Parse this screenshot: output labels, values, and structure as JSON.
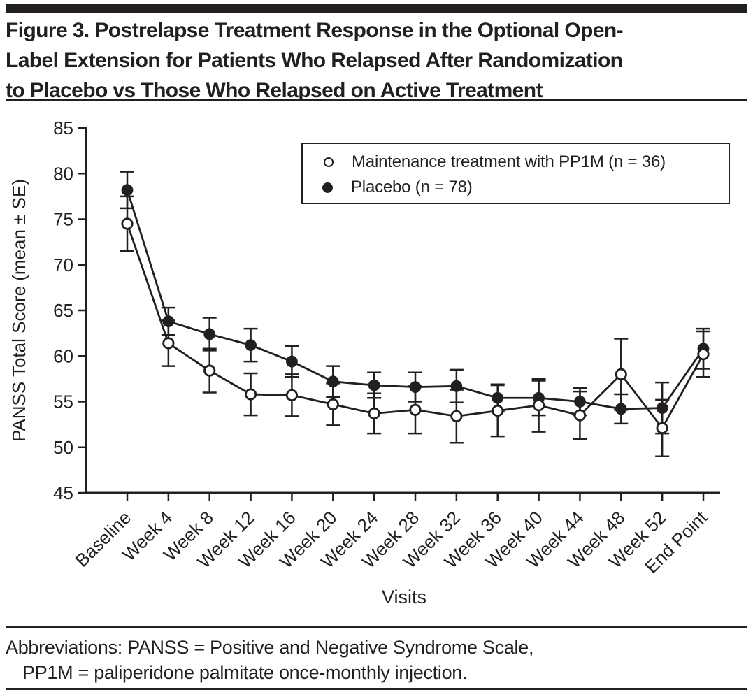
{
  "figure": {
    "title_lines": [
      "Figure 3. Postrelapse Treatment Response in the Optional Open-",
      "Label Extension for Patients Who Relapsed After Randomization",
      "to Placebo vs Those Who Relapsed on Active Treatment"
    ]
  },
  "chart_data": {
    "type": "line",
    "title": "Figure 3. Postrelapse Treatment Response in the Optional Open-Label Extension for Patients Who Relapsed After Randomization to Placebo vs Those Who Relapsed on Active Treatment",
    "xlabel": "Visits",
    "ylabel": "PANSS Total Score (mean ± SE)",
    "ylim": [
      45,
      85
    ],
    "ytick_interval": 5,
    "yticks": [
      45,
      50,
      55,
      60,
      65,
      70,
      75,
      80,
      85
    ],
    "grid": false,
    "legend_position": "top-right",
    "error_bars": "± SE",
    "categories": [
      "Baseline",
      "Week 4",
      "Week 8",
      "Week 12",
      "Week 16",
      "Week 20",
      "Week 24",
      "Week 28",
      "Week 32",
      "Week 36",
      "Week 40",
      "Week 44",
      "Week 48",
      "Week 52",
      "End Point"
    ],
    "series": [
      {
        "name": "Maintenance treatment with PP1M (n = 36)",
        "marker": "open-circle",
        "values": [
          74.5,
          61.4,
          58.4,
          55.8,
          55.7,
          54.7,
          53.7,
          54.1,
          53.4,
          54.0,
          54.6,
          53.5,
          58.0,
          52.1,
          60.2
        ],
        "se": [
          3.0,
          2.5,
          2.4,
          2.3,
          2.3,
          2.3,
          2.2,
          2.6,
          2.9,
          2.8,
          2.9,
          2.6,
          3.9,
          3.1,
          2.5
        ]
      },
      {
        "name": "Placebo (n = 78)",
        "marker": "filled-circle",
        "values": [
          78.2,
          63.8,
          62.4,
          61.2,
          59.4,
          57.2,
          56.8,
          56.6,
          56.7,
          55.4,
          55.4,
          55.0,
          54.2,
          54.3,
          60.8
        ],
        "se": [
          2.0,
          1.5,
          1.8,
          1.8,
          1.7,
          1.7,
          1.4,
          1.6,
          1.8,
          1.5,
          1.9,
          1.5,
          1.6,
          2.8,
          2.2
        ]
      }
    ]
  },
  "footer": {
    "line1": "Abbreviations: PANSS = Positive and Negative Syndrome Scale,",
    "line2": "PP1M = paliperidone palmitate once-monthly injection."
  },
  "colors": {
    "ink": "#231f20",
    "background": "#ffffff"
  }
}
